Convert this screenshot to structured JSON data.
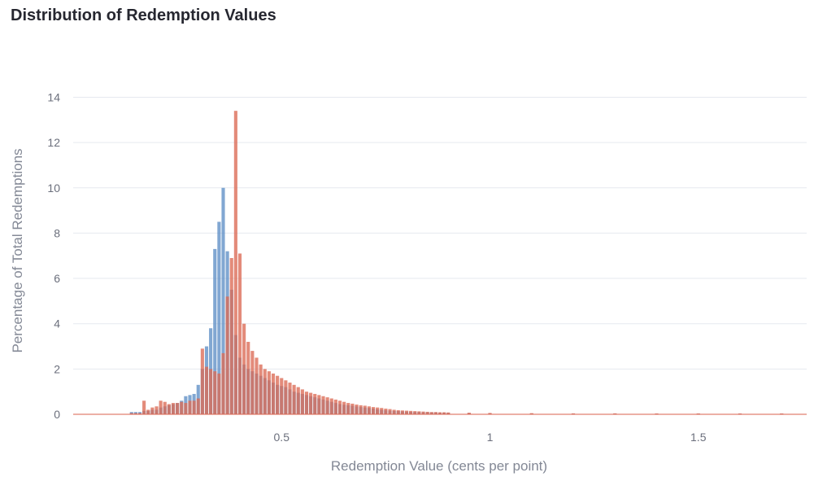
{
  "title": "Distribution of Redemption Values",
  "chart_data": {
    "type": "bar",
    "xlabel": "Redemption Value (cents per point)",
    "ylabel": "Percentage of Total Redemptions",
    "xlim": [
      0.0,
      1.76
    ],
    "ylim": [
      0,
      14.7
    ],
    "bin_width": 0.01,
    "x_ticks": [
      {
        "value": 0.5,
        "label": "0.5"
      },
      {
        "value": 1,
        "label": "1"
      },
      {
        "value": 1.5,
        "label": "1.5"
      }
    ],
    "y_ticks": [
      {
        "value": 0,
        "label": "0"
      },
      {
        "value": 2,
        "label": "2"
      },
      {
        "value": 4,
        "label": "4"
      },
      {
        "value": 6,
        "label": "6"
      },
      {
        "value": 8,
        "label": "8"
      },
      {
        "value": 10,
        "label": "10"
      },
      {
        "value": 12,
        "label": "12"
      },
      {
        "value": 14,
        "label": "14"
      }
    ],
    "grid": true,
    "legend": "none",
    "colors": {
      "series_blue": "#5e8ec5",
      "series_red": "#db6a55",
      "grid": "#e6e9ef"
    },
    "series": [
      {
        "color": "#5e8ec5",
        "x": [
          0.14,
          0.15,
          0.16,
          0.17,
          0.18,
          0.19,
          0.2,
          0.21,
          0.22,
          0.23,
          0.24,
          0.25,
          0.26,
          0.27,
          0.28,
          0.29,
          0.3,
          0.31,
          0.32,
          0.33,
          0.34,
          0.35,
          0.36,
          0.37,
          0.38,
          0.39,
          0.4,
          0.41,
          0.42,
          0.43,
          0.44,
          0.45,
          0.46,
          0.47,
          0.48,
          0.49,
          0.5,
          0.51,
          0.52,
          0.53,
          0.54,
          0.55,
          0.56,
          0.57,
          0.58,
          0.59,
          0.6,
          0.61,
          0.62,
          0.63,
          0.64,
          0.65,
          0.66,
          0.67,
          0.68,
          0.69,
          0.7,
          0.71,
          0.72,
          0.73,
          0.74,
          0.75,
          0.76,
          0.77,
          0.78,
          0.79,
          0.8,
          0.81,
          0.82,
          0.83,
          0.84,
          0.85,
          0.86,
          0.87,
          0.88,
          0.89,
          0.9,
          0.95,
          1.0,
          1.1,
          1.2,
          1.3,
          1.4,
          1.5,
          1.6,
          1.7
        ],
        "values": [
          0.1,
          0.1,
          0.1,
          0.15,
          0.15,
          0.2,
          0.2,
          0.3,
          0.35,
          0.4,
          0.45,
          0.5,
          0.6,
          0.8,
          0.85,
          0.9,
          1.3,
          2.0,
          3.0,
          3.8,
          7.3,
          8.5,
          10.0,
          7.2,
          5.5,
          3.5,
          2.5,
          2.2,
          2.0,
          1.9,
          1.8,
          1.7,
          1.6,
          1.5,
          1.4,
          1.3,
          1.25,
          1.2,
          1.1,
          1.0,
          0.95,
          0.9,
          0.85,
          0.8,
          0.75,
          0.7,
          0.65,
          0.6,
          0.55,
          0.5,
          0.45,
          0.42,
          0.4,
          0.38,
          0.35,
          0.32,
          0.3,
          0.28,
          0.25,
          0.22,
          0.2,
          0.18,
          0.16,
          0.15,
          0.14,
          0.13,
          0.12,
          0.11,
          0.1,
          0.1,
          0.09,
          0.09,
          0.08,
          0.08,
          0.07,
          0.07,
          0.06,
          0.05,
          0.04,
          0.03,
          0.03,
          0.02,
          0.02,
          0.02,
          0.02,
          0.02
        ]
      },
      {
        "color": "#db6a55",
        "x": [
          0.14,
          0.15,
          0.16,
          0.17,
          0.18,
          0.19,
          0.2,
          0.21,
          0.22,
          0.23,
          0.24,
          0.25,
          0.26,
          0.27,
          0.28,
          0.29,
          0.3,
          0.31,
          0.32,
          0.33,
          0.34,
          0.35,
          0.36,
          0.37,
          0.38,
          0.39,
          0.4,
          0.41,
          0.42,
          0.43,
          0.44,
          0.45,
          0.46,
          0.47,
          0.48,
          0.49,
          0.5,
          0.51,
          0.52,
          0.53,
          0.54,
          0.55,
          0.56,
          0.57,
          0.58,
          0.59,
          0.6,
          0.61,
          0.62,
          0.63,
          0.64,
          0.65,
          0.66,
          0.67,
          0.68,
          0.69,
          0.7,
          0.71,
          0.72,
          0.73,
          0.74,
          0.75,
          0.76,
          0.77,
          0.78,
          0.79,
          0.8,
          0.81,
          0.82,
          0.83,
          0.84,
          0.85,
          0.86,
          0.87,
          0.88,
          0.89,
          0.9,
          0.95,
          1.0,
          1.1,
          1.2,
          1.3,
          1.4,
          1.5,
          1.6,
          1.7
        ],
        "values": [
          0.05,
          0.05,
          0.05,
          0.6,
          0.2,
          0.3,
          0.35,
          0.6,
          0.55,
          0.45,
          0.5,
          0.5,
          0.55,
          0.5,
          0.6,
          0.6,
          0.7,
          2.9,
          2.1,
          2.0,
          1.9,
          1.8,
          2.7,
          5.2,
          6.9,
          13.4,
          7.1,
          4.0,
          3.2,
          2.8,
          2.5,
          2.2,
          2.0,
          1.9,
          1.8,
          1.7,
          1.6,
          1.5,
          1.4,
          1.3,
          1.2,
          1.1,
          1.0,
          0.95,
          0.9,
          0.85,
          0.8,
          0.75,
          0.7,
          0.65,
          0.6,
          0.55,
          0.5,
          0.47,
          0.43,
          0.4,
          0.38,
          0.35,
          0.32,
          0.3,
          0.28,
          0.25,
          0.23,
          0.2,
          0.18,
          0.17,
          0.16,
          0.15,
          0.14,
          0.13,
          0.12,
          0.11,
          0.1,
          0.1,
          0.09,
          0.09,
          0.08,
          0.07,
          0.06,
          0.05,
          0.04,
          0.04,
          0.03,
          0.03,
          0.03,
          0.03
        ]
      }
    ]
  }
}
